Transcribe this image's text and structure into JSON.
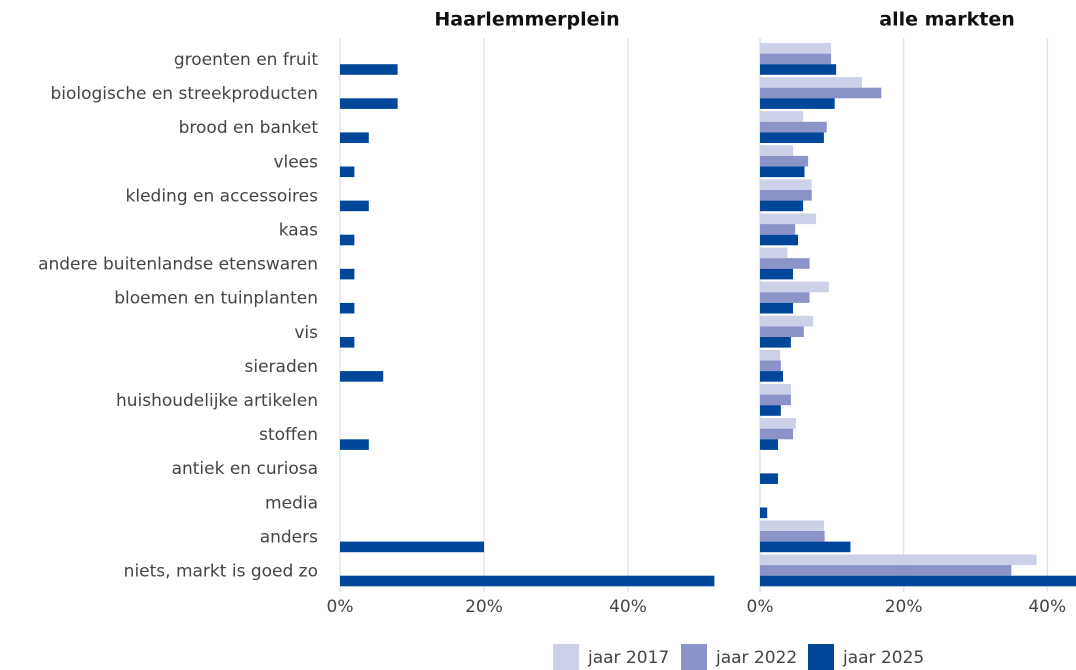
{
  "chart_data": [
    {
      "type": "bar",
      "orientation": "horizontal",
      "title": "Haarlemmerplein",
      "categories": [
        "groenten en fruit",
        "biologische en streekproducten",
        "brood en banket",
        "vlees",
        "kleding en accessoires",
        "kaas",
        "andere buitenlandse etenswaren",
        "bloemen en tuinplanten",
        "vis",
        "sieraden",
        "huishoudelijke artikelen",
        "stoffen",
        "antiek en curiosa",
        "media",
        "anders",
        "niets, markt is goed zo"
      ],
      "series": [
        {
          "name": "jaar 2017",
          "color": "#cdd1e8",
          "values": [
            null,
            null,
            null,
            null,
            null,
            null,
            null,
            null,
            null,
            null,
            null,
            null,
            null,
            null,
            null,
            null
          ]
        },
        {
          "name": "jaar 2022",
          "color": "#8b93c8",
          "values": [
            null,
            null,
            null,
            null,
            null,
            null,
            null,
            null,
            null,
            null,
            null,
            null,
            null,
            null,
            null,
            null
          ]
        },
        {
          "name": "jaar 2025",
          "color": "#004699",
          "values": [
            8,
            8,
            4,
            2,
            4,
            2,
            2,
            2,
            2,
            6,
            null,
            4,
            null,
            null,
            20,
            52
          ]
        }
      ],
      "xlim": [
        0,
        55
      ],
      "xticks": [
        {
          "value": 0,
          "label": "0%"
        },
        {
          "value": 20,
          "label": "20%"
        },
        {
          "value": 40,
          "label": "40%"
        }
      ],
      "grid": true
    },
    {
      "type": "bar",
      "orientation": "horizontal",
      "title": "alle markten",
      "series": [
        {
          "name": "jaar 2017",
          "color": "#cdd1e8",
          "values": [
            9.9,
            14.2,
            6.0,
            4.6,
            7.2,
            7.8,
            3.8,
            9.6,
            7.4,
            2.8,
            4.3,
            5.0,
            null,
            null,
            8.9,
            38.5
          ]
        },
        {
          "name": "jaar 2022",
          "color": "#8b93c8",
          "values": [
            9.9,
            16.9,
            9.3,
            6.7,
            7.2,
            4.9,
            6.9,
            6.9,
            6.1,
            2.9,
            4.3,
            4.6,
            null,
            null,
            9.0,
            35.0
          ]
        },
        {
          "name": "jaar 2025",
          "color": "#004699",
          "values": [
            10.6,
            10.4,
            8.9,
            6.2,
            6.0,
            5.3,
            4.6,
            4.6,
            4.3,
            3.2,
            2.9,
            2.5,
            2.5,
            1.0,
            12.6,
            44
          ]
        }
      ],
      "xlim": [
        0,
        44
      ],
      "xticks": [
        {
          "value": 0,
          "label": "0%"
        },
        {
          "value": 20,
          "label": "20%"
        },
        {
          "value": 40,
          "label": "40%"
        }
      ],
      "grid": true,
      "legend": "bottom"
    }
  ]
}
